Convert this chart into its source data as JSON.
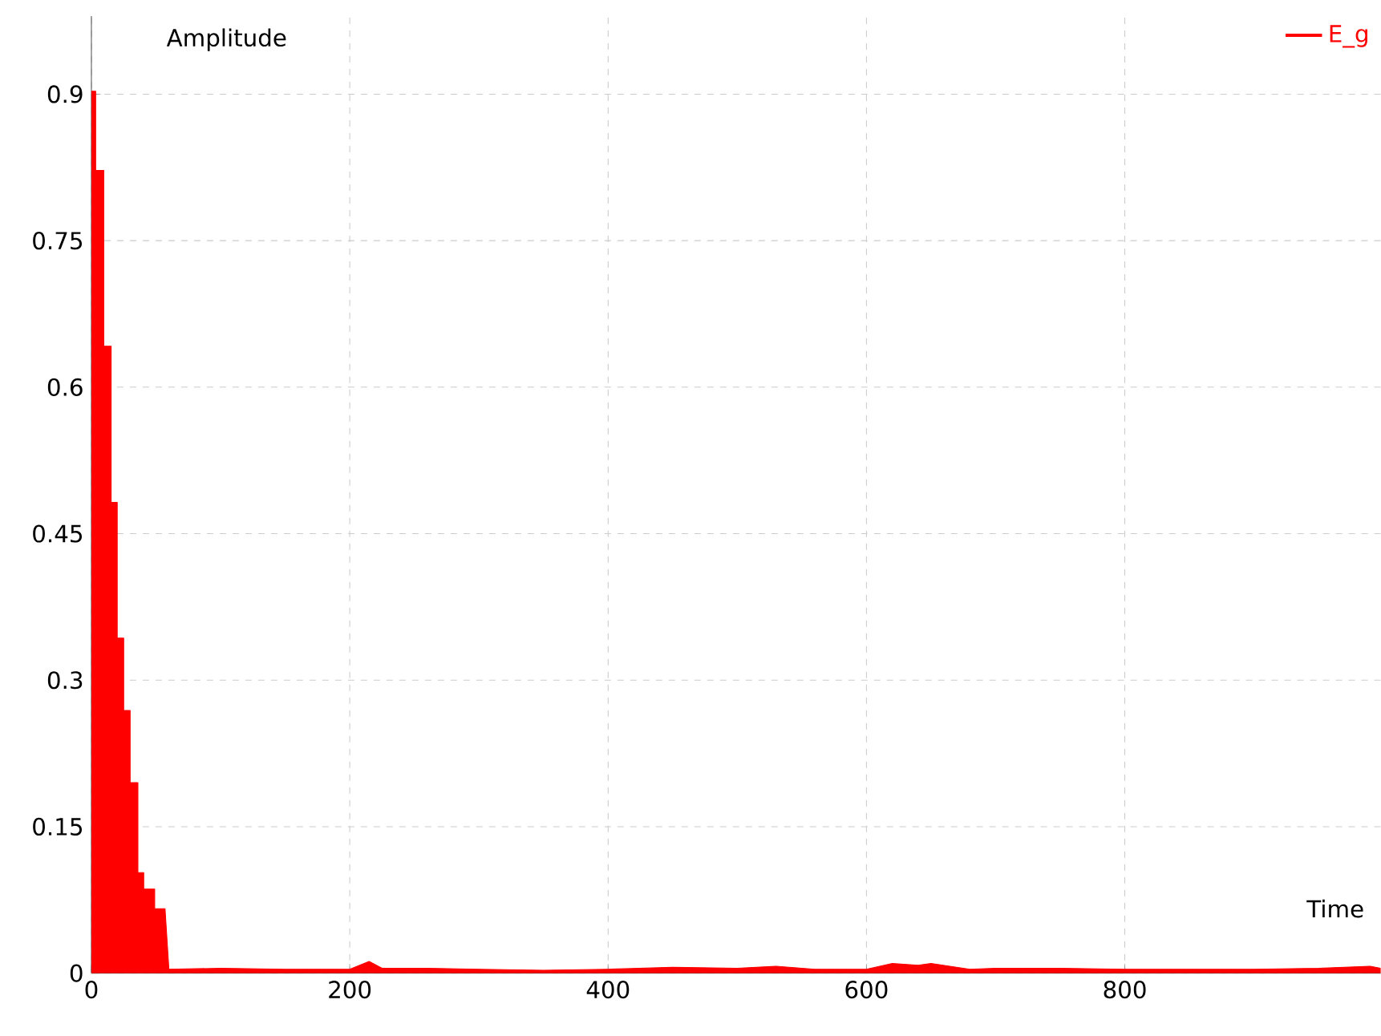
{
  "chart_data": {
    "type": "area",
    "xlabel": "Time",
    "ylabel": "Amplitude",
    "x": [
      0,
      3.3,
      3.3,
      9.6,
      9.6,
      15.3,
      15.3,
      20,
      20,
      25,
      25,
      30,
      30,
      36,
      36,
      40.5,
      40.5,
      49,
      49,
      57,
      60,
      100,
      150,
      200,
      215,
      225,
      260,
      300,
      350,
      400,
      450,
      500,
      530,
      560,
      600,
      620,
      640,
      650,
      680,
      700,
      750,
      800,
      850,
      900,
      950,
      990,
      998
    ],
    "series": [
      {
        "name": "E_g",
        "color": "#ff0000",
        "values": [
          0.903,
          0.903,
          0.822,
          0.822,
          0.642,
          0.642,
          0.482,
          0.482,
          0.343,
          0.343,
          0.269,
          0.269,
          0.195,
          0.195,
          0.103,
          0.103,
          0.086,
          0.086,
          0.066,
          0.066,
          0.004,
          0.005,
          0.004,
          0.004,
          0.012,
          0.005,
          0.005,
          0.004,
          0.003,
          0.004,
          0.006,
          0.005,
          0.007,
          0.004,
          0.004,
          0.01,
          0.008,
          0.01,
          0.004,
          0.005,
          0.005,
          0.004,
          0.004,
          0.004,
          0.005,
          0.007,
          0.005
        ]
      }
    ],
    "xlim": [
      0,
      998
    ],
    "ylim": [
      0,
      0.98
    ],
    "xticks": [
      0,
      200,
      400,
      600,
      800
    ],
    "yticks": [
      0,
      0.15,
      0.3,
      0.45,
      0.6,
      0.75,
      0.9
    ],
    "grid": true,
    "legend": "top right",
    "marker": "none"
  }
}
